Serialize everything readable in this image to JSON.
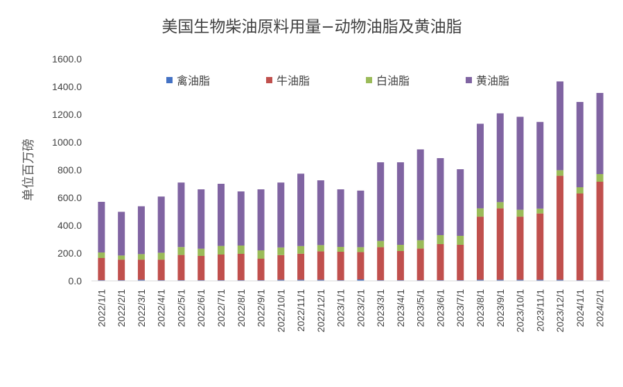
{
  "chart_data": {
    "type": "bar",
    "stacked": true,
    "title": "美国生物柴油原料用量−动物油脂及黄油脂",
    "ylabel": "单位百万磅",
    "xlabel": "",
    "ylim": [
      0,
      1600
    ],
    "yticks": [
      "0.0",
      "200.0",
      "400.0",
      "600.0",
      "800.0",
      "1000.0",
      "1200.0",
      "1400.0",
      "1600.0"
    ],
    "grid": false,
    "legend_position": "top",
    "categories": [
      "2022/1/1",
      "2022/2/1",
      "2022/3/1",
      "2022/4/1",
      "2022/5/1",
      "2022/6/1",
      "2022/7/1",
      "2022/8/1",
      "2022/9/1",
      "2022/10/1",
      "2022/11/1",
      "2022/12/1",
      "2023/1/1",
      "2023/2/1",
      "2023/3/1",
      "2023/4/1",
      "2023/5/1",
      "2023/6/1",
      "2023/7/1",
      "2023/8/1",
      "2023/9/1",
      "2023/10/1",
      "2023/11/1",
      "2023/12/1",
      "2024/1/1",
      "2024/2/1"
    ],
    "series": [
      {
        "name": "禽油脂",
        "color": "#4472C4",
        "values": [
          5,
          5,
          8,
          5,
          5,
          5,
          5,
          5,
          5,
          8,
          8,
          8,
          5,
          10,
          5,
          5,
          5,
          5,
          5,
          8,
          8,
          8,
          8,
          8,
          5,
          5
        ]
      },
      {
        "name": "牛油脂",
        "color": "#C0504D",
        "values": [
          160,
          148,
          145,
          148,
          182,
          175,
          185,
          190,
          155,
          178,
          188,
          205,
          205,
          198,
          238,
          210,
          228,
          260,
          255,
          455,
          515,
          455,
          478,
          750,
          625,
          710
        ]
      },
      {
        "name": "白油脂",
        "color": "#9BBB59",
        "values": [
          40,
          30,
          40,
          50,
          57,
          52,
          62,
          60,
          60,
          55,
          55,
          45,
          35,
          35,
          45,
          45,
          60,
          65,
          65,
          60,
          45,
          50,
          35,
          40,
          45,
          55
        ]
      },
      {
        "name": "黄油脂",
        "color": "#8064A2",
        "values": [
          365,
          315,
          345,
          405,
          465,
          428,
          448,
          390,
          440,
          468,
          522,
          467,
          415,
          408,
          567,
          595,
          655,
          555,
          480,
          610,
          640,
          670,
          625,
          640,
          615,
          585
        ]
      }
    ]
  }
}
